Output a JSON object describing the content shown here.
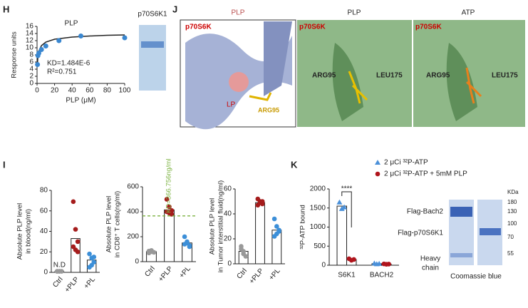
{
  "panel_labels": [
    "H",
    "J",
    "I",
    "K"
  ],
  "gel_h": {
    "label": "p70S6K1"
  },
  "structure": {
    "titles": [
      "PLP",
      "PLP",
      "ATP"
    ],
    "protein": "p70S6K",
    "ligand": "PLP",
    "ligand_short": "LP",
    "residues": [
      "ARG95",
      "LEU175"
    ]
  },
  "gel_k": {
    "bands": [
      "Flag-Bach2",
      "Flag-p70S6K1",
      "Heavy",
      "chain"
    ],
    "unit": "KDa",
    "markers": [
      "180",
      "130",
      "100",
      "70",
      "55"
    ],
    "caption": "Coomassie blue"
  },
  "chart_data": [
    {
      "type": "scatter",
      "title": "PLP",
      "xlabel": "PLP (μM)",
      "ylabel": "Response units",
      "annotations": [
        "KD=1.484E-6",
        "R²=0.751"
      ],
      "color": "#3a87d0",
      "x": [
        0.5,
        1,
        2,
        5,
        10,
        25,
        50,
        100
      ],
      "values": [
        5.3,
        7.8,
        8.5,
        9.5,
        10.5,
        12,
        13.3,
        12.8
      ],
      "fit": {
        "x": [
          0.3,
          1,
          2,
          5,
          10,
          20,
          40,
          60,
          80,
          100
        ],
        "values": [
          5,
          7.6,
          9,
          10.6,
          11.6,
          12.4,
          13,
          13.3,
          13.5,
          13.6
        ]
      },
      "xlim": [
        0,
        100
      ],
      "xticks": [
        0,
        20,
        40,
        60,
        80,
        100
      ],
      "ylim": [
        0,
        16
      ],
      "yticks": [
        0,
        2,
        4,
        6,
        8,
        10,
        12,
        14,
        16
      ]
    },
    {
      "type": "bar",
      "ylabel": [
        "Absolute PLP level",
        "in blood(ng/ml)"
      ],
      "categories": [
        "Ctrl",
        "+PLP",
        "+PL"
      ],
      "values": [
        1,
        33,
        12
      ],
      "colors": [
        "#999999",
        "#a51c1c",
        "#3c8fd8"
      ],
      "annotation": "N.D",
      "points": [
        [
          1,
          1,
          1,
          1,
          1
        ],
        [
          69,
          42,
          30,
          25,
          22,
          20
        ],
        [
          18,
          14,
          10,
          5,
          7,
          15
        ]
      ],
      "ylim": [
        0,
        80
      ],
      "yticks": [
        0,
        20,
        40,
        60,
        80
      ]
    },
    {
      "type": "bar",
      "ylabel": [
        "Absolute PLP level",
        "in CD8⁺ T cells(ng/ml)"
      ],
      "categories": [
        "Ctrl",
        "+PLP",
        "+PL"
      ],
      "values": [
        80,
        415,
        150
      ],
      "colors": [
        "#999999",
        "#a51c1c",
        "#3c8fd8"
      ],
      "points": [
        [
          70,
          90,
          75,
          85,
          80
        ],
        [
          500,
          440,
          410,
          400,
          390,
          380
        ],
        [
          200,
          160,
          130,
          140,
          150,
          120
        ]
      ],
      "reference_line": {
        "value": 366.756,
        "label": "KD=366.756ng/ml",
        "color": "#7cb342"
      },
      "ylim": [
        0,
        600
      ],
      "yticks": [
        0,
        200,
        400,
        600
      ]
    },
    {
      "type": "bar",
      "ylabel": [
        "Absolute PLP level",
        "in Tumor interstitial fluid(ng/ml)"
      ],
      "categories": [
        "Ctrl",
        "+PLP",
        "+PL"
      ],
      "values": [
        10,
        49,
        27
      ],
      "colors": [
        "#999999",
        "#a51c1c",
        "#3c8fd8"
      ],
      "points": [
        [
          14,
          8,
          6,
          12,
          10
        ],
        [
          52,
          50,
          48,
          47,
          49,
          50
        ],
        [
          36,
          30,
          26,
          22,
          24,
          27
        ]
      ],
      "ylim": [
        0,
        60
      ],
      "yticks": [
        0,
        20,
        40,
        60
      ]
    },
    {
      "type": "bar",
      "ylabel": [
        "³²P-ATP bound"
      ],
      "categories": [
        "S6K1",
        "BACH2"
      ],
      "annotation": "****",
      "series": [
        {
          "name": "2 μCi ³²P-ATP",
          "color": "#4a90d9",
          "marker": "triangle",
          "values": [
            1550,
            40
          ],
          "points": [
            [
              1650,
              1480,
              1520
            ],
            [
              50,
              30,
              40
            ]
          ]
        },
        {
          "name": "2 μCi ³²P-ATP + 5mM PLP",
          "color": "#b0141c",
          "marker": "circle",
          "values": [
            150,
            30
          ],
          "points": [
            [
              170,
              130,
              150
            ],
            [
              35,
              25,
              30
            ]
          ]
        }
      ],
      "ylim": [
        0,
        2000
      ],
      "yticks": [
        0,
        500,
        1000,
        1500,
        2000
      ]
    }
  ]
}
